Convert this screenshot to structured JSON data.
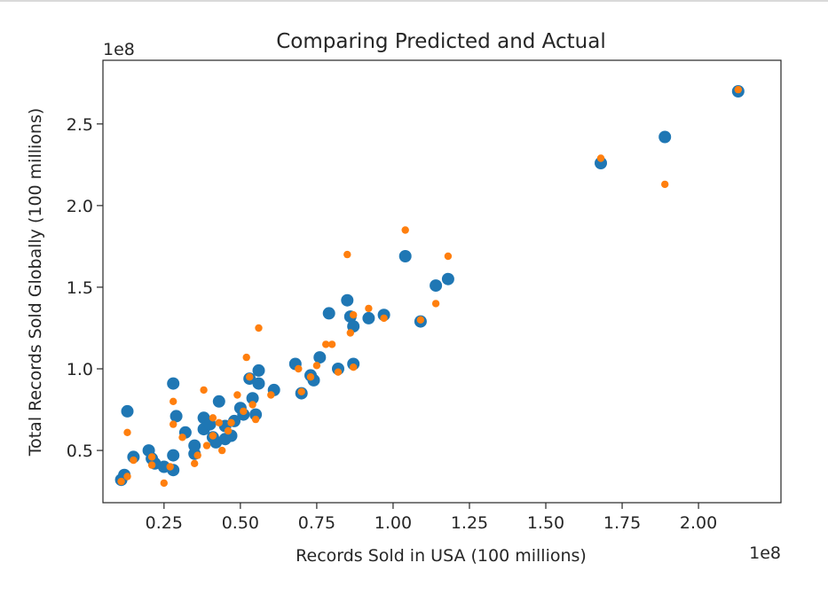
{
  "chart_data": {
    "type": "scatter",
    "title": "Comparing Predicted and Actual",
    "xlabel": "Records Sold in USA (100 millions)",
    "ylabel": "Total Records Sold Globally (100 millions)",
    "x_offset_label": "1e8",
    "y_offset_label": "1e8",
    "xlim": [
      0.05,
      2.27
    ],
    "ylim": [
      0.18,
      2.89
    ],
    "xticks": [
      0.25,
      0.5,
      0.75,
      1.0,
      1.25,
      1.5,
      1.75,
      2.0
    ],
    "xtick_labels": [
      "0.25",
      "0.50",
      "0.75",
      "1.00",
      "1.25",
      "1.50",
      "1.75",
      "2.00"
    ],
    "yticks": [
      0.5,
      1.0,
      1.5,
      2.0,
      2.5
    ],
    "ytick_labels": [
      "0.5",
      "1.0",
      "1.5",
      "2.0",
      "2.5"
    ],
    "grid": false,
    "legend": "none",
    "series": [
      {
        "color": "#1f77b4",
        "marker_size": "large",
        "points": [
          [
            0.11,
            0.32
          ],
          [
            0.12,
            0.35
          ],
          [
            0.13,
            0.74
          ],
          [
            0.15,
            0.46
          ],
          [
            0.2,
            0.5
          ],
          [
            0.21,
            0.45
          ],
          [
            0.22,
            0.42
          ],
          [
            0.25,
            0.4
          ],
          [
            0.28,
            0.38
          ],
          [
            0.28,
            0.47
          ],
          [
            0.28,
            0.91
          ],
          [
            0.29,
            0.71
          ],
          [
            0.32,
            0.61
          ],
          [
            0.35,
            0.53
          ],
          [
            0.35,
            0.48
          ],
          [
            0.38,
            0.7
          ],
          [
            0.38,
            0.63
          ],
          [
            0.4,
            0.66
          ],
          [
            0.41,
            0.58
          ],
          [
            0.42,
            0.55
          ],
          [
            0.43,
            0.8
          ],
          [
            0.45,
            0.57
          ],
          [
            0.45,
            0.65
          ],
          [
            0.47,
            0.59
          ],
          [
            0.48,
            0.68
          ],
          [
            0.5,
            0.76
          ],
          [
            0.51,
            0.72
          ],
          [
            0.53,
            0.94
          ],
          [
            0.54,
            0.82
          ],
          [
            0.55,
            0.72
          ],
          [
            0.56,
            0.91
          ],
          [
            0.56,
            0.99
          ],
          [
            0.61,
            0.87
          ],
          [
            0.68,
            1.03
          ],
          [
            0.7,
            0.85
          ],
          [
            0.73,
            0.96
          ],
          [
            0.74,
            0.93
          ],
          [
            0.76,
            1.07
          ],
          [
            0.79,
            1.34
          ],
          [
            0.82,
            1.0
          ],
          [
            0.85,
            1.42
          ],
          [
            0.86,
            1.32
          ],
          [
            0.87,
            1.26
          ],
          [
            0.87,
            1.03
          ],
          [
            0.92,
            1.31
          ],
          [
            0.97,
            1.33
          ],
          [
            1.04,
            1.69
          ],
          [
            1.09,
            1.29
          ],
          [
            1.14,
            1.51
          ],
          [
            1.18,
            1.55
          ],
          [
            1.68,
            2.26
          ],
          [
            1.89,
            2.42
          ],
          [
            2.13,
            2.7
          ]
        ]
      },
      {
        "color": "#ff7f0e",
        "marker_size": "small",
        "points": [
          [
            0.11,
            0.31
          ],
          [
            0.13,
            0.34
          ],
          [
            0.13,
            0.61
          ],
          [
            0.15,
            0.44
          ],
          [
            0.21,
            0.46
          ],
          [
            0.21,
            0.41
          ],
          [
            0.25,
            0.3
          ],
          [
            0.27,
            0.4
          ],
          [
            0.28,
            0.66
          ],
          [
            0.28,
            0.8
          ],
          [
            0.31,
            0.58
          ],
          [
            0.35,
            0.42
          ],
          [
            0.36,
            0.47
          ],
          [
            0.38,
            0.87
          ],
          [
            0.39,
            0.53
          ],
          [
            0.41,
            0.59
          ],
          [
            0.41,
            0.7
          ],
          [
            0.43,
            0.67
          ],
          [
            0.44,
            0.5
          ],
          [
            0.46,
            0.62
          ],
          [
            0.47,
            0.67
          ],
          [
            0.49,
            0.84
          ],
          [
            0.51,
            0.74
          ],
          [
            0.52,
            1.07
          ],
          [
            0.53,
            0.95
          ],
          [
            0.54,
            0.78
          ],
          [
            0.55,
            0.69
          ],
          [
            0.56,
            1.25
          ],
          [
            0.6,
            0.84
          ],
          [
            0.69,
            1.0
          ],
          [
            0.7,
            0.86
          ],
          [
            0.73,
            0.95
          ],
          [
            0.75,
            1.02
          ],
          [
            0.78,
            1.15
          ],
          [
            0.8,
            1.15
          ],
          [
            0.82,
            0.98
          ],
          [
            0.85,
            1.7
          ],
          [
            0.86,
            1.22
          ],
          [
            0.87,
            1.33
          ],
          [
            0.87,
            1.01
          ],
          [
            0.92,
            1.37
          ],
          [
            0.97,
            1.31
          ],
          [
            1.04,
            1.85
          ],
          [
            1.09,
            1.3
          ],
          [
            1.14,
            1.4
          ],
          [
            1.18,
            1.69
          ],
          [
            1.68,
            2.29
          ],
          [
            1.89,
            2.13
          ],
          [
            2.13,
            2.71
          ]
        ]
      }
    ]
  }
}
